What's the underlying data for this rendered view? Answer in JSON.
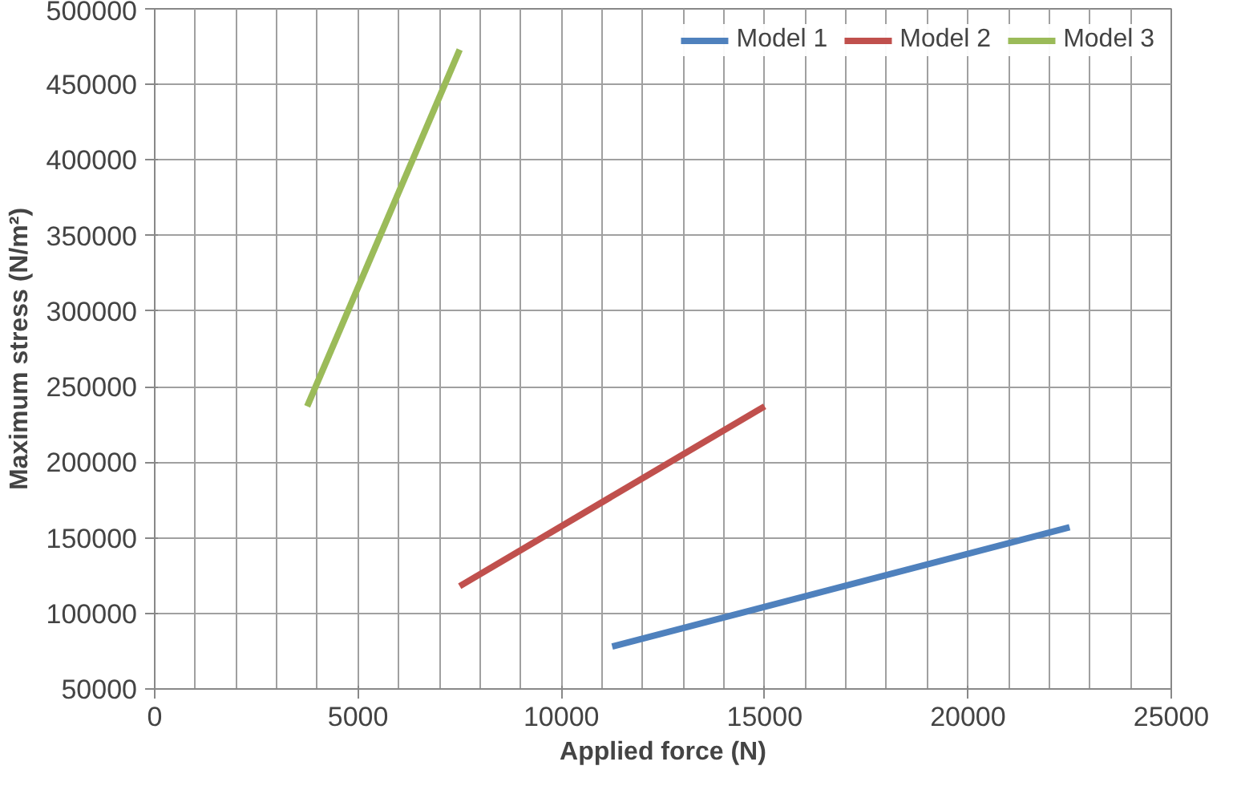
{
  "chart_data": {
    "type": "line",
    "xlabel": "Applied force (N)",
    "ylabel": "Maximum stress (N/m²)",
    "series": [
      {
        "name": "Model 1",
        "color": "#4f81bd",
        "x": [
          11250,
          22500
        ],
        "values": [
          78000,
          157000
        ]
      },
      {
        "name": "Model 2",
        "color": "#c0504d",
        "x": [
          7500,
          15000
        ],
        "values": [
          118000,
          237000
        ]
      },
      {
        "name": "Model 3",
        "color": "#9bbb59",
        "x": [
          3750,
          7500
        ],
        "values": [
          237000,
          473000
        ]
      }
    ],
    "xlim": [
      0,
      25000
    ],
    "xticks": [
      0,
      {
        "value": 1000,
        "label": null
      },
      {
        "value": 2000,
        "label": null
      },
      {
        "value": 3000,
        "label": null
      },
      {
        "value": 4000,
        "label": null
      },
      5000,
      {
        "value": 6000,
        "label": null
      },
      {
        "value": 7000,
        "label": null
      },
      {
        "value": 8000,
        "label": null
      },
      {
        "value": 9000,
        "label": null
      },
      10000,
      {
        "value": 11000,
        "label": null
      },
      {
        "value": 12000,
        "label": null
      },
      {
        "value": 13000,
        "label": null
      },
      {
        "value": 14000,
        "label": null
      },
      15000,
      {
        "value": 16000,
        "label": null
      },
      {
        "value": 17000,
        "label": null
      },
      {
        "value": 18000,
        "label": null
      },
      {
        "value": 19000,
        "label": null
      },
      20000,
      {
        "value": 21000,
        "label": null
      },
      {
        "value": 22000,
        "label": null
      },
      {
        "value": 23000,
        "label": null
      },
      {
        "value": 24000,
        "label": null
      },
      25000
    ],
    "ylim": [
      50000,
      500000
    ],
    "yticks": [
      50000,
      100000,
      150000,
      200000,
      250000,
      300000,
      350000,
      400000,
      450000,
      500000
    ],
    "grid": true,
    "legend": "top right",
    "marker": "none",
    "line_style": "solid"
  }
}
